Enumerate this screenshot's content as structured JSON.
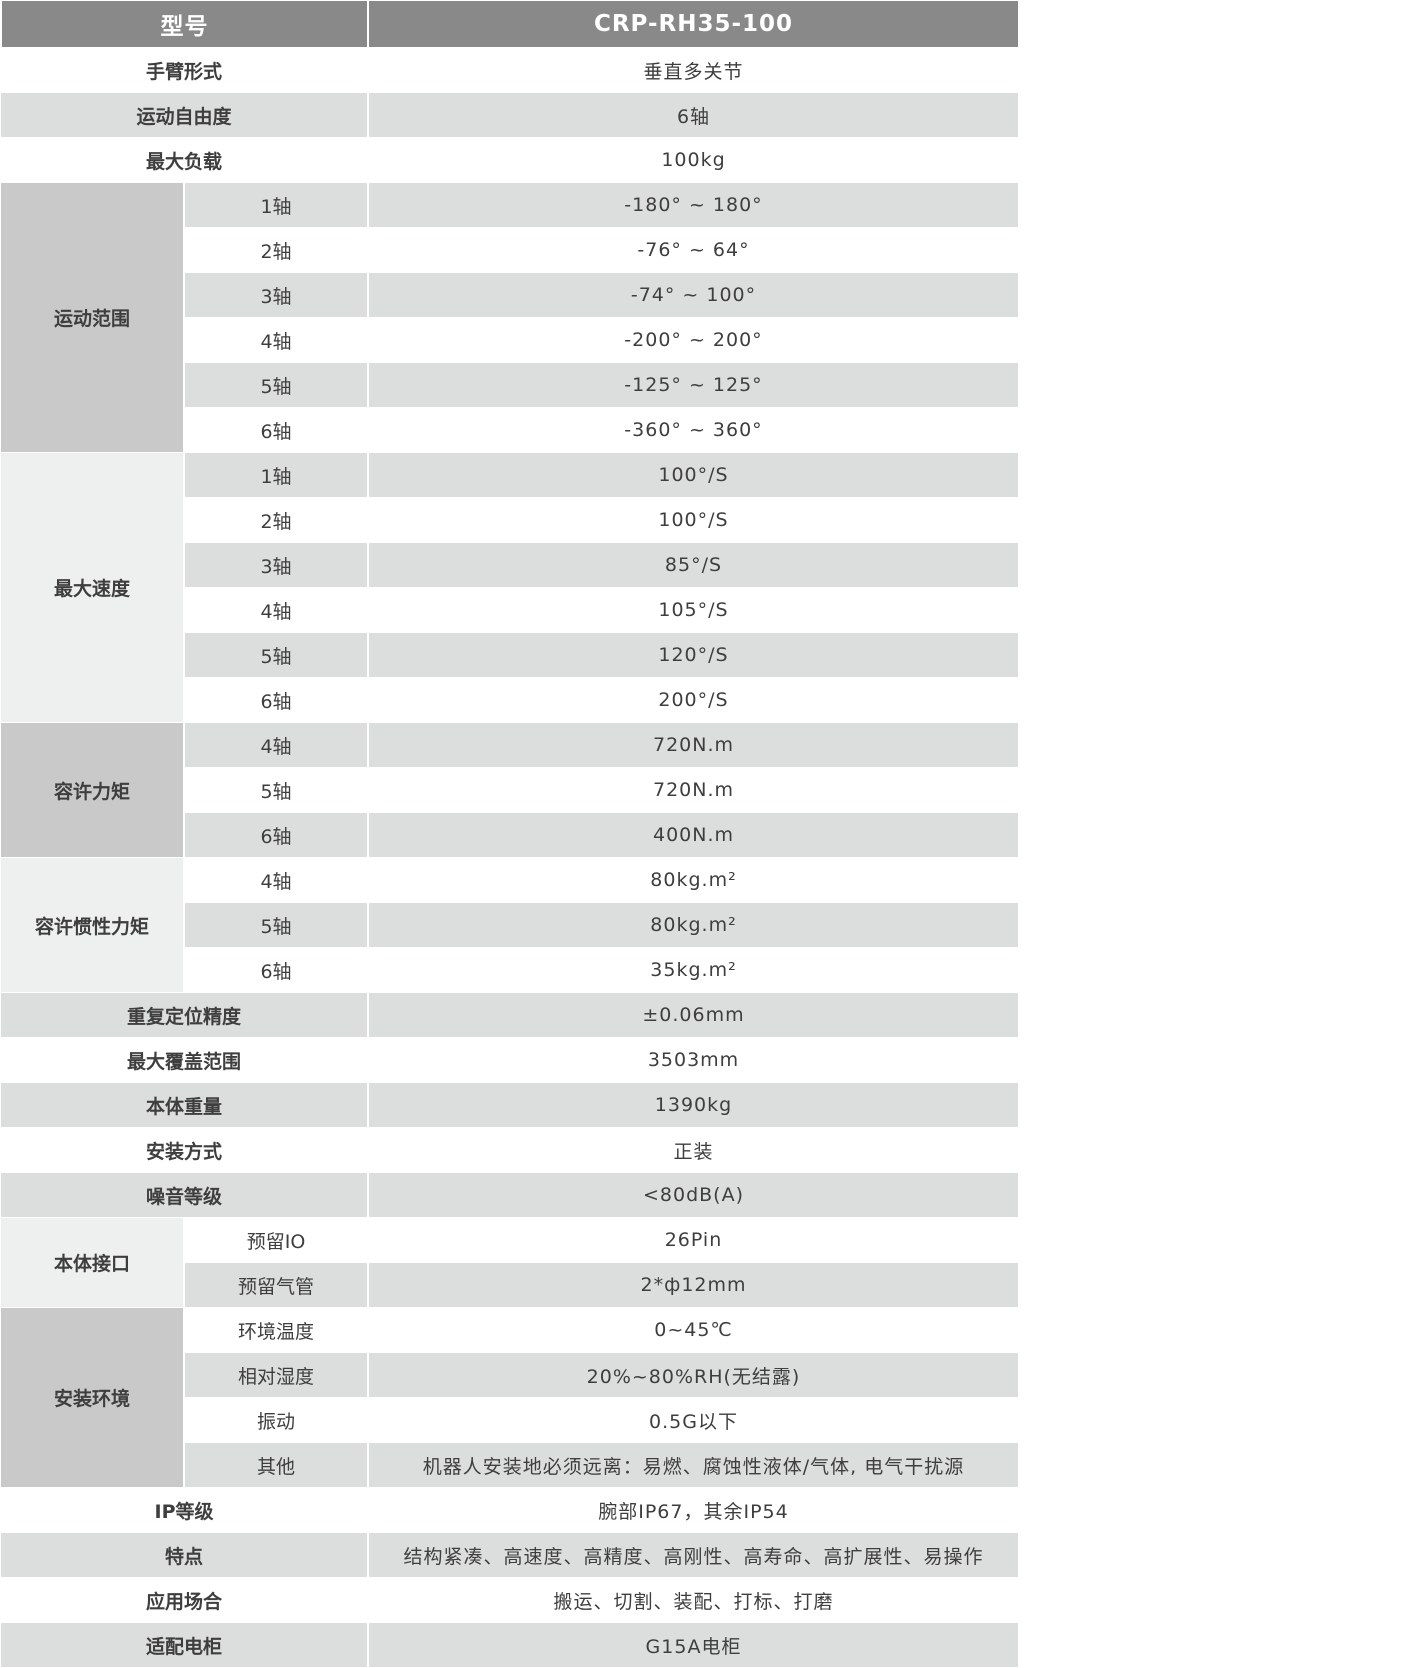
{
  "header": {
    "label": "型号",
    "value": "CRP-RH35-100"
  },
  "colors": {
    "header_bg": "#898989",
    "row_gray": "#dcdddd",
    "group_dark": "#c9c9c9",
    "group_light": "#eeefef"
  },
  "rows": [
    {
      "label": "手臂形式",
      "value": "垂直多关节"
    },
    {
      "label": "运动自由度",
      "value": "6轴"
    },
    {
      "label": "最大负载",
      "value": "100kg"
    },
    {
      "label": "运动范围",
      "tone": "dark",
      "sub": [
        {
          "label": "1轴",
          "value": "-180° ~ 180°"
        },
        {
          "label": "2轴",
          "value": "-76° ~ 64°"
        },
        {
          "label": "3轴",
          "value": "-74° ~ 100°"
        },
        {
          "label": "4轴",
          "value": "-200° ~ 200°"
        },
        {
          "label": "5轴",
          "value": "-125° ~ 125°"
        },
        {
          "label": "6轴",
          "value": "-360° ~ 360°"
        }
      ]
    },
    {
      "label": "最大速度",
      "tone": "light",
      "sub": [
        {
          "label": "1轴",
          "value": "100°/S"
        },
        {
          "label": "2轴",
          "value": "100°/S"
        },
        {
          "label": "3轴",
          "value": "85°/S"
        },
        {
          "label": "4轴",
          "value": "105°/S"
        },
        {
          "label": "5轴",
          "value": "120°/S"
        },
        {
          "label": "6轴",
          "value": "200°/S"
        }
      ]
    },
    {
      "label": "容许力矩",
      "tone": "dark",
      "sub": [
        {
          "label": "4轴",
          "value": "720N.m"
        },
        {
          "label": "5轴",
          "value": "720N.m"
        },
        {
          "label": "6轴",
          "value": "400N.m"
        }
      ]
    },
    {
      "label": "容许惯性力矩",
      "tone": "light",
      "sub": [
        {
          "label": "4轴",
          "value": "80kg.m²"
        },
        {
          "label": "5轴",
          "value": "80kg.m²"
        },
        {
          "label": "6轴",
          "value": "35kg.m²"
        }
      ]
    },
    {
      "label": "重复定位精度",
      "value": "±0.06mm"
    },
    {
      "label": "最大覆盖范围",
      "value": "3503mm"
    },
    {
      "label": "本体重量",
      "value": "1390kg"
    },
    {
      "label": "安装方式",
      "value": "正装"
    },
    {
      "label": "噪音等级",
      "value": "<80dB(A)"
    },
    {
      "label": "本体接口",
      "tone": "light",
      "sub": [
        {
          "label": "预留IO",
          "value": "26Pin"
        },
        {
          "label": "预留气管",
          "value": "2*ф12mm"
        }
      ]
    },
    {
      "label": "安装环境",
      "tone": "dark",
      "sub": [
        {
          "label": "环境温度",
          "value": "0~45℃"
        },
        {
          "label": "相对湿度",
          "value": "20%~80%RH(无结露)"
        },
        {
          "label": "振动",
          "value": "0.5G以下"
        },
        {
          "label": "其他",
          "value": "机器人安装地必须远离：易燃、腐蚀性液体/气体, 电气干扰源"
        }
      ]
    },
    {
      "label": "IP等级",
      "value": "腕部IP67，其余IP54"
    },
    {
      "label": "特点",
      "value": "结构紧凑、高速度、高精度、高刚性、高寿命、高扩展性、易操作"
    },
    {
      "label": "应用场合",
      "value": "搬运、切割、装配、打标、打磨"
    },
    {
      "label": "适配电柜",
      "value": "G15A电柜"
    }
  ]
}
